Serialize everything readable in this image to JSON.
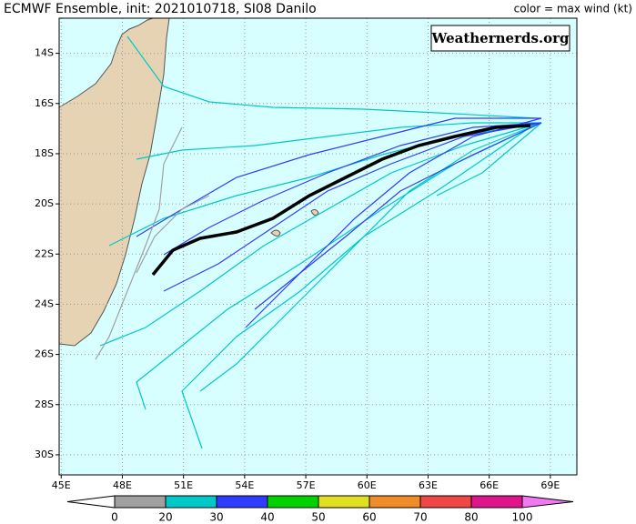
{
  "map": {
    "title": "ECMWF Ensemble, init: 2021010718, SI08 Danilo",
    "color_label": "color = max wind (kt)",
    "credit": "Weathernerds.org",
    "lonlim": [
      44.9,
      70.3
    ],
    "latlim": [
      -12.6,
      -30.8
    ],
    "lonticks": [
      {
        "value": 45,
        "label": "45E"
      },
      {
        "value": 48,
        "label": "48E"
      },
      {
        "value": 51,
        "label": "51E"
      },
      {
        "value": 54,
        "label": "54E"
      },
      {
        "value": 57,
        "label": "57E"
      },
      {
        "value": 60,
        "label": "60E"
      },
      {
        "value": 63,
        "label": "63E"
      },
      {
        "value": 66,
        "label": "66E"
      },
      {
        "value": 69,
        "label": "69E"
      }
    ],
    "latticks": [
      {
        "value": -14,
        "label": "14S"
      },
      {
        "value": -16,
        "label": "16S"
      },
      {
        "value": -18,
        "label": "18S"
      },
      {
        "value": -20,
        "label": "20S"
      },
      {
        "value": -22,
        "label": "22S"
      },
      {
        "value": -24,
        "label": "24S"
      },
      {
        "value": -26,
        "label": "26S"
      },
      {
        "value": -28,
        "label": "28S"
      },
      {
        "value": -30,
        "label": "30S"
      }
    ],
    "grid": true,
    "colorbar": {
      "ticks": [
        0,
        20,
        30,
        40,
        50,
        60,
        70,
        80,
        100
      ],
      "colors": [
        "#a0a0a0",
        "#00c8c8",
        "#2f3cff",
        "#00d200",
        "#e0e020",
        "#f08c28",
        "#f04646",
        "#e0148c"
      ],
      "under_color": "#ffffff",
      "over_color": "#f078f0"
    }
  }
}
